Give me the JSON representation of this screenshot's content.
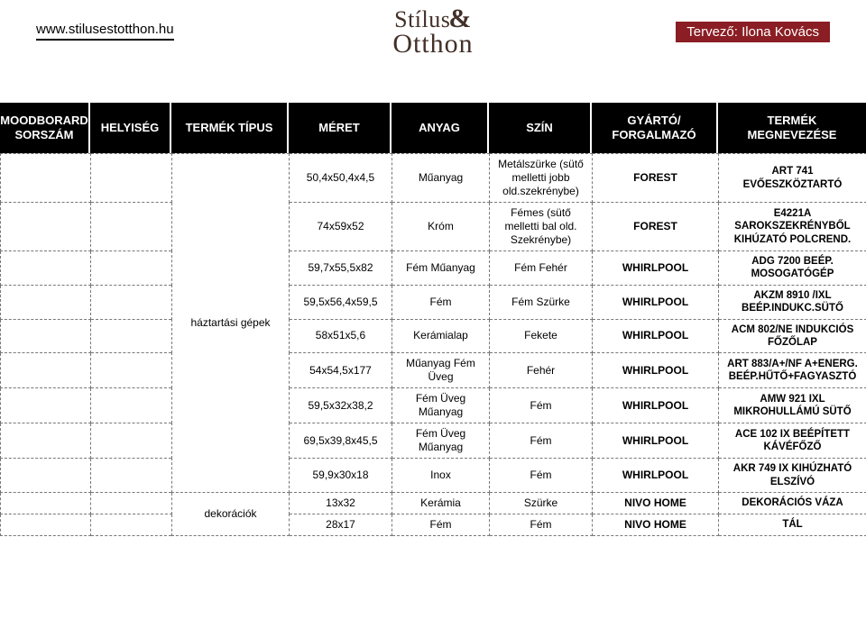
{
  "header": {
    "site_url": "www.stilusestotthon.hu",
    "logo_line1": "Stílus",
    "logo_amp": "&",
    "logo_line2": "Otthon",
    "designer": "Tervező: Ilona Kovács"
  },
  "columns": {
    "c1": "MOODBORARD SORSZÁM",
    "c2": "HELYISÉG",
    "c3": "TERMÉK TÍPUS",
    "c4": "MÉRET",
    "c5": "ANYAG",
    "c6": "SZÍN",
    "c7": "GYÁRTÓ/ FORGALMAZÓ",
    "c8": "TERMÉK MEGNEVEZÉSE"
  },
  "rowspans": {
    "haztartasi": "háztartási gépek",
    "dekoraciok": "dekorációk"
  },
  "rows": [
    {
      "meret": "50,4x50,4x4,5",
      "anyag": "Műanyag",
      "szin": "Metálszürke (sütő melletti jobb old.szekrénybe)",
      "gyarto": "FOREST",
      "nev": "ART 741 EVŐESZKÖZTARTÓ"
    },
    {
      "meret": "74x59x52",
      "anyag": "Króm",
      "szin": "Fémes (sütő melletti bal old. Szekrénybe)",
      "gyarto": "FOREST",
      "nev": "E4221A SAROKSZEKRÉNYBŐL KIHÚZATÓ POLCREND."
    },
    {
      "meret": "59,7x55,5x82",
      "anyag": "Fém Műanyag",
      "szin": "Fém Fehér",
      "gyarto": "WHIRLPOOL",
      "nev": "ADG 7200 BEÉP. MOSOGATÓGÉP"
    },
    {
      "meret": "59,5x56,4x59,5",
      "anyag": "Fém",
      "szin": "Fém Szürke",
      "gyarto": "WHIRLPOOL",
      "nev": "AKZM 8910 /IXL BEÉP.INDUKC.SÜTŐ"
    },
    {
      "meret": "58x51x5,6",
      "anyag": "Kerámialap",
      "szin": "Fekete",
      "gyarto": "WHIRLPOOL",
      "nev": "ACM 802/NE INDUKCIÓS FŐZŐLAP"
    },
    {
      "meret": "54x54,5x177",
      "anyag": "Műanyag Fém Üveg",
      "szin": "Fehér",
      "gyarto": "WHIRLPOOL",
      "nev": "ART 883/A+/NF A+ENERG. BEÉP.HŰTŐ+FAGYASZTÓ"
    },
    {
      "meret": "59,5x32x38,2",
      "anyag": "Fém Üveg Műanyag",
      "szin": "Fém",
      "gyarto": "WHIRLPOOL",
      "nev": "AMW 921 IXL MIKROHULLÁMÚ SÜTŐ"
    },
    {
      "meret": "69,5x39,8x45,5",
      "anyag": "Fém Üveg Műanyag",
      "szin": "Fém",
      "gyarto": "WHIRLPOOL",
      "nev": "ACE 102 IX BEÉPÍTETT KÁVÉFŐZŐ"
    },
    {
      "meret": "59,9x30x18",
      "anyag": "Inox",
      "szin": "Fém",
      "gyarto": "WHIRLPOOL",
      "nev": "AKR 749 IX KIHÚZHATÓ ELSZÍVÓ"
    },
    {
      "meret": "13x32",
      "anyag": "Kerámia",
      "szin": "Szürke",
      "gyarto": "NIVO HOME",
      "nev": "DEKORÁCIÓS VÁZA"
    },
    {
      "meret": "28x17",
      "anyag": "Fém",
      "szin": "Fém",
      "gyarto": "NIVO HOME",
      "nev": "TÁL"
    }
  ],
  "style": {
    "header_bg": "#000000",
    "header_fg": "#ffffff",
    "accent_bg": "#8a1e24",
    "logo_color": "#433028",
    "border_color": "#777777"
  }
}
